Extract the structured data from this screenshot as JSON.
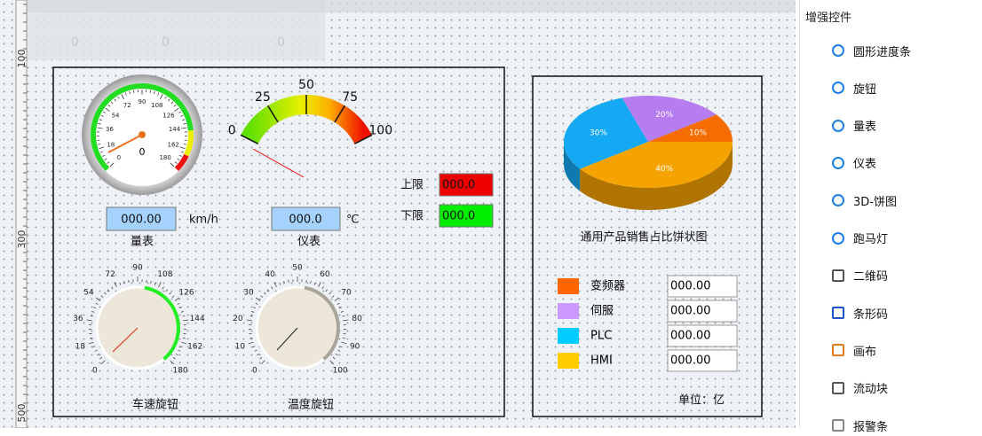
{
  "ruler": {
    "labels": [
      "100",
      "300",
      "500"
    ]
  },
  "top_strip": {
    "labels": [
      "0",
      "0",
      "0"
    ]
  },
  "left_panel": {
    "speed_gauge": {
      "ticks": [
        "0",
        "18",
        "36",
        "54",
        "72",
        "90",
        "108",
        "126",
        "144",
        "162",
        "180"
      ],
      "value": "0"
    },
    "meter": {
      "ticks": [
        "0",
        "25",
        "50",
        "75",
        "100"
      ]
    },
    "gauge_readout": {
      "value": "000.00",
      "unit": "km/h",
      "label": "量表"
    },
    "meter_readout": {
      "value": "000.0",
      "unit": "℃",
      "label": "仪表"
    },
    "limits": [
      {
        "label": "上限",
        "value": "000.0"
      },
      {
        "label": "下限",
        "value": "000.0"
      }
    ],
    "speed_knob": {
      "ticks": [
        "0",
        "18",
        "36",
        "54",
        "72",
        "90",
        "108",
        "126",
        "144",
        "162",
        "180"
      ],
      "label": "车速旋钮"
    },
    "temp_knob": {
      "ticks": [
        "0",
        "10",
        "20",
        "30",
        "40",
        "50",
        "60",
        "70",
        "80",
        "90",
        "100"
      ],
      "label": "温度旋钮"
    }
  },
  "right_panel": {
    "pie": {
      "title": "通用产品销售占比饼状图",
      "values": [
        40,
        30,
        20,
        10
      ],
      "value_labels": [
        "40%",
        "30%",
        "20%",
        "10%"
      ],
      "colors": [
        "#f5a300",
        "#14a9f2",
        "#b57df0",
        "#f56c00"
      ]
    },
    "legend": [
      {
        "name": "变频器",
        "color": "#ff6600",
        "value": "000.00"
      },
      {
        "name": "伺服",
        "color": "#cc99ff",
        "value": "000.00"
      },
      {
        "name": "PLC",
        "color": "#00ccff",
        "value": "000.00"
      },
      {
        "name": "HMI",
        "color": "#ffcc00",
        "value": "000.00"
      }
    ],
    "unit": "单位：亿"
  },
  "sidebar": {
    "title": "增强控件",
    "items": [
      "圆形进度条",
      "旋钮",
      "量表",
      "仪表",
      "3D-饼图",
      "跑马灯",
      "二维码",
      "条形码",
      "画布",
      "流动块",
      "报警条"
    ]
  }
}
